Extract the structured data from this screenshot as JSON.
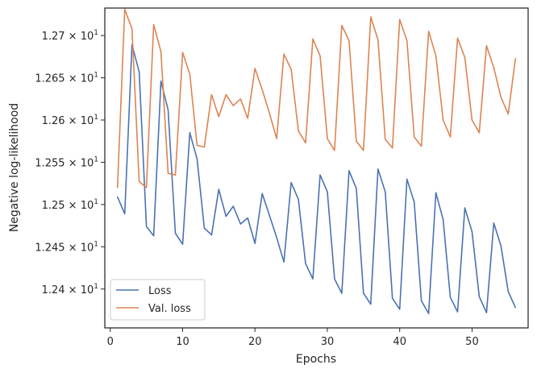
{
  "chart_data": {
    "type": "line",
    "title": "",
    "xlabel": "Epochs",
    "ylabel": "Negative log-likelihood",
    "xlim": [
      -0.75,
      57.75
    ],
    "ylim": [
      12.354,
      12.7325
    ],
    "grid": false,
    "legend_position": "lower-left",
    "x_ticks": [
      0,
      10,
      20,
      30,
      40,
      50
    ],
    "x_tick_labels": [
      "0",
      "10",
      "20",
      "30",
      "40",
      "50"
    ],
    "y_ticks": [
      12.4,
      12.45,
      12.5,
      12.55,
      12.6,
      12.65,
      12.7
    ],
    "y_tick_mantissas": [
      "1.24",
      "1.245",
      "1.25",
      "1.255",
      "1.26",
      "1.265",
      "1.27"
    ],
    "y_tick_base": "× 10",
    "y_tick_exponent": "1",
    "x": [
      1,
      2,
      3,
      4,
      5,
      6,
      7,
      8,
      9,
      10,
      11,
      12,
      13,
      14,
      15,
      16,
      17,
      18,
      19,
      20,
      21,
      22,
      23,
      24,
      25,
      26,
      27,
      28,
      29,
      30,
      31,
      32,
      33,
      34,
      35,
      36,
      37,
      38,
      39,
      40,
      41,
      42,
      43,
      44,
      45,
      46,
      47,
      48,
      49,
      50,
      51,
      52,
      53,
      54,
      55,
      56
    ],
    "series": [
      {
        "name": "Loss",
        "color": "#4c72b0",
        "values": [
          12.509,
          12.489,
          12.689,
          12.657,
          12.474,
          12.463,
          12.646,
          12.612,
          12.466,
          12.453,
          12.585,
          12.554,
          12.472,
          12.464,
          12.518,
          12.486,
          12.498,
          12.477,
          12.484,
          12.454,
          12.513,
          12.487,
          12.461,
          12.432,
          12.526,
          12.506,
          12.43,
          12.412,
          12.535,
          12.515,
          12.412,
          12.395,
          12.54,
          12.519,
          12.395,
          12.382,
          12.542,
          12.515,
          12.389,
          12.376,
          12.53,
          12.503,
          12.386,
          12.371,
          12.514,
          12.482,
          12.39,
          12.373,
          12.496,
          12.468,
          12.391,
          12.372,
          12.478,
          12.451,
          12.397,
          12.378
        ]
      },
      {
        "name": "Val. loss",
        "color": "#dd8452",
        "values": [
          12.52,
          12.731,
          12.708,
          12.527,
          12.52,
          12.713,
          12.681,
          12.537,
          12.535,
          12.68,
          12.654,
          12.57,
          12.568,
          12.63,
          12.604,
          12.63,
          12.617,
          12.625,
          12.602,
          12.661,
          12.636,
          12.608,
          12.578,
          12.678,
          12.66,
          12.587,
          12.573,
          12.696,
          12.676,
          12.578,
          12.564,
          12.712,
          12.694,
          12.575,
          12.564,
          12.722,
          12.695,
          12.577,
          12.567,
          12.719,
          12.694,
          12.58,
          12.569,
          12.705,
          12.676,
          12.6,
          12.58,
          12.697,
          12.674,
          12.6,
          12.585,
          12.688,
          12.662,
          12.627,
          12.607,
          12.673
        ]
      }
    ]
  }
}
